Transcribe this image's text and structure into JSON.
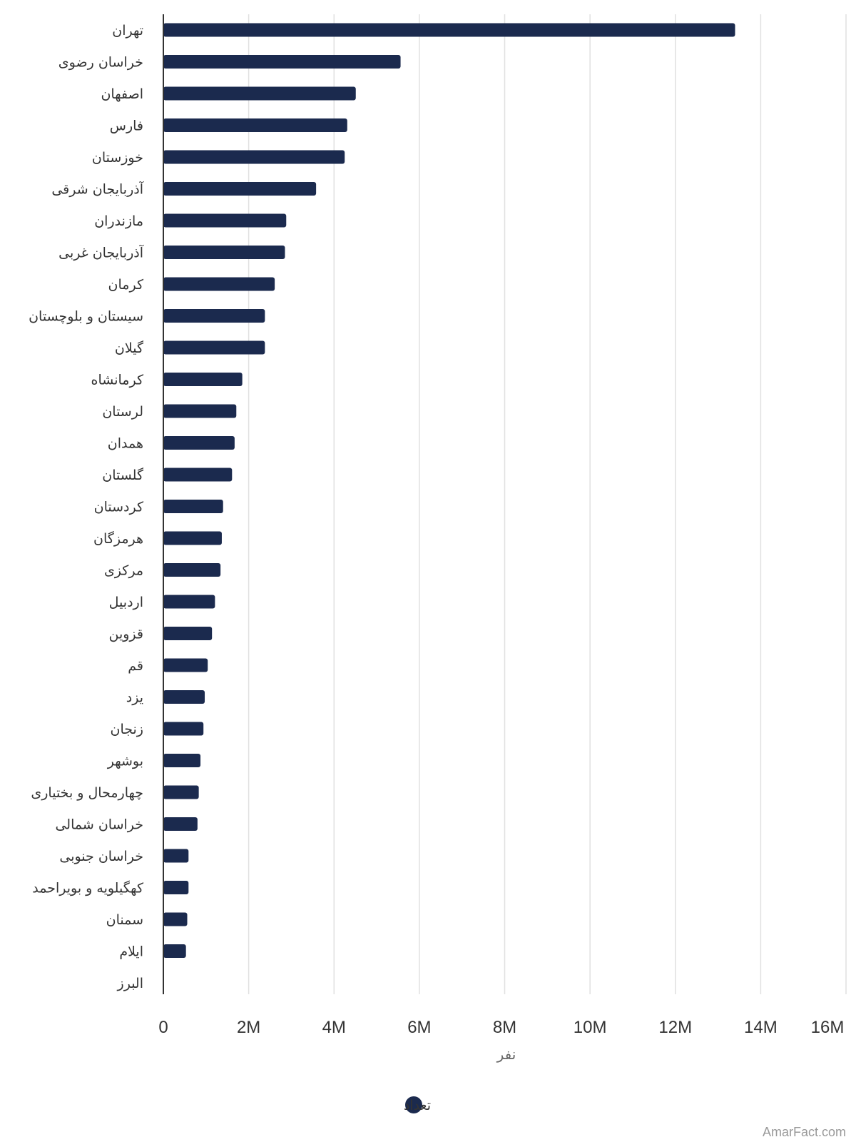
{
  "chart_data": {
    "type": "bar",
    "orientation": "horizontal",
    "categories": [
      "تهران",
      "خراسان رضوی",
      "اصفهان",
      "فارس",
      "خوزستان",
      "آذربایجان شرقی",
      "مازندران",
      "آذربایجان غربی",
      "کرمان",
      "سیستان و بلوچستان",
      "گیلان",
      "کرمانشاه",
      "لرستان",
      "همدان",
      "گلستان",
      "کردستان",
      "هرمزگان",
      "مرکزی",
      "اردبیل",
      "قزوین",
      "قم",
      "یزد",
      "زنجان",
      "بوشهر",
      "چهارمحال و بختیاری",
      "خراسان شمالی",
      "خراسان جنوبی",
      "کهگیلویه و بویراحمد",
      "سمنان",
      "ایلام",
      "البرز"
    ],
    "series": [
      {
        "name": "تعداد",
        "color": "#1b2a4e",
        "values": [
          13400000,
          5560000,
          4510000,
          4310000,
          4250000,
          3580000,
          2880000,
          2850000,
          2610000,
          2380000,
          2380000,
          1850000,
          1710000,
          1670000,
          1610000,
          1400000,
          1370000,
          1340000,
          1210000,
          1140000,
          1040000,
          970000,
          940000,
          870000,
          830000,
          800000,
          590000,
          590000,
          560000,
          530000,
          0
        ]
      }
    ],
    "xlabel": "نفر",
    "xlim": [
      0,
      16000000
    ],
    "xticks": [
      0,
      2000000,
      4000000,
      6000000,
      8000000,
      10000000,
      12000000,
      14000000,
      16000000
    ],
    "xtick_labels": [
      "0",
      "2M",
      "4M",
      "6M",
      "8M",
      "10M",
      "12M",
      "14M",
      "16M"
    ],
    "grid": true,
    "legend_position": "bottom-center",
    "gridline_color": "#e0e0e0",
    "axis_line_color": "#333333"
  },
  "credit": "AmarFact.com"
}
